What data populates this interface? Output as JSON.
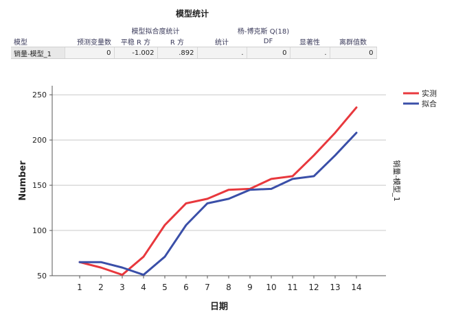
{
  "table": {
    "title": "模型统计",
    "headers": {
      "model": "模型",
      "predictors": "预测变量数",
      "fit_group": "模型拟合度统计",
      "stationary_r2": "平稳 R 方",
      "r2": "R 方",
      "ljung_group": "杨-博克斯 Q(18)",
      "stat": "统计",
      "df": "DF",
      "sig": "显著性",
      "outliers": "离群值数"
    },
    "row": {
      "model": "销量-模型_1",
      "predictors": "0",
      "stationary_r2": "-1.002",
      "r2": ".892",
      "stat": ".",
      "df": "0",
      "sig": ".",
      "outliers": "0"
    }
  },
  "chart_data": {
    "type": "line",
    "categories": [
      "1",
      "2",
      "3",
      "4",
      "5",
      "6",
      "7",
      "8",
      "9",
      "10",
      "11",
      "12",
      "13",
      "14"
    ],
    "series": [
      {
        "name": "实测",
        "color": "#e8383d",
        "values": [
          65,
          59,
          51,
          71,
          106,
          130,
          135,
          145,
          146,
          157,
          160,
          183,
          208,
          236
        ]
      },
      {
        "name": "拟合",
        "color": "#3a4fa8",
        "values": [
          65,
          65,
          59,
          51,
          71,
          106,
          130,
          135,
          145,
          146,
          157,
          160,
          183,
          208
        ]
      }
    ],
    "title": "",
    "xlabel": "日期",
    "ylabel": "Number",
    "right_label": "销量-模型_1",
    "ylim": [
      50,
      260
    ],
    "yticks": [
      50,
      100,
      150,
      200,
      250
    ],
    "grid": true,
    "legend": "top-right"
  }
}
